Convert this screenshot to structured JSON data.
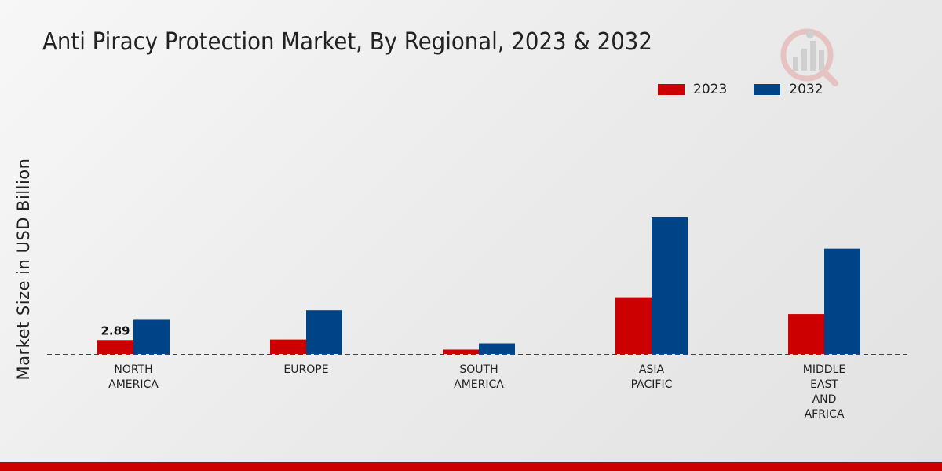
{
  "chart_data": {
    "type": "bar",
    "title": "Anti Piracy Protection Market, By Regional, 2023 & 2032",
    "xlabel": "",
    "ylabel": "Market Size in USD Billion",
    "categories": [
      [
        "NORTH",
        "AMERICA"
      ],
      [
        "EUROPE"
      ],
      [
        "SOUTH",
        "AMERICA"
      ],
      [
        "ASIA",
        "PACIFIC"
      ],
      [
        "MIDDLE",
        "EAST",
        "AND",
        "AFRICA"
      ]
    ],
    "series": [
      {
        "name": "2023",
        "color": "#cc0000",
        "values": [
          2.89,
          3.0,
          0.9,
          11.8,
          8.3
        ]
      },
      {
        "name": "2032",
        "color": "#004488",
        "values": [
          7.1,
          9.1,
          2.2,
          28.4,
          21.9
        ]
      }
    ],
    "data_labels": [
      {
        "series": 0,
        "index": 0,
        "text": "2.89"
      }
    ],
    "ylim": [
      0,
      30
    ],
    "grid": false,
    "legend": "top-right"
  }
}
